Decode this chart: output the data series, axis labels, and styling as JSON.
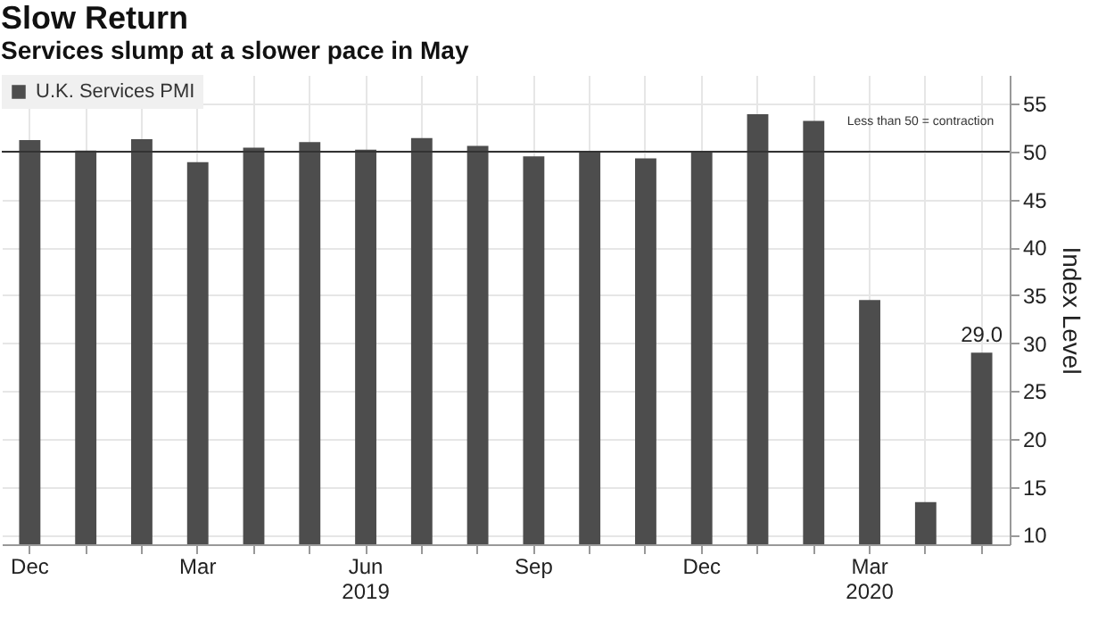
{
  "chart_data": {
    "type": "bar",
    "title": "Slow Return",
    "subtitle": "Services slump at a slower pace in May",
    "ylabel": "Index Level",
    "categories": [
      "Dec",
      null,
      null,
      "Mar",
      null,
      null,
      "Jun\n2019",
      null,
      null,
      "Sep",
      null,
      null,
      "Dec",
      null,
      null,
      "Mar\n2020",
      null,
      null
    ],
    "series": [
      {
        "name": "U.K. Services PMI",
        "color": "#4d4d4d",
        "values": [
          51.2,
          50.1,
          51.3,
          48.9,
          50.4,
          51.0,
          50.2,
          51.4,
          50.6,
          49.5,
          50.0,
          49.3,
          50.0,
          53.9,
          53.2,
          34.5,
          13.4,
          29.0
        ],
        "value_labels": [
          null,
          null,
          null,
          null,
          null,
          null,
          null,
          null,
          null,
          null,
          null,
          null,
          null,
          null,
          null,
          null,
          null,
          "29.0"
        ]
      }
    ],
    "ylim": [
      9,
      58
    ],
    "yticks": [
      10,
      15,
      20,
      25,
      30,
      35,
      40,
      45,
      50,
      55
    ],
    "ref_lines": [
      {
        "axis": "y",
        "value": 50,
        "label": "Less than 50 = contraction",
        "color": "#333333"
      }
    ],
    "grid": true,
    "legend": "top left"
  }
}
